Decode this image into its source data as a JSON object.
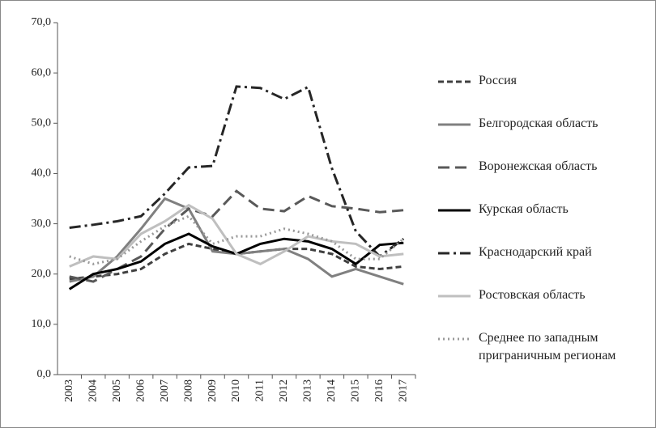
{
  "chart_data": {
    "type": "line",
    "categories": [
      "2003",
      "2004",
      "2005",
      "2006",
      "2007",
      "2008",
      "2009",
      "2010",
      "2011",
      "2012",
      "2013",
      "2014",
      "2015",
      "2016",
      "2017"
    ],
    "ylim": [
      0,
      70
    ],
    "yticks": [
      {
        "value": 0,
        "label": "0,0"
      },
      {
        "value": 10,
        "label": "10,0"
      },
      {
        "value": 20,
        "label": "20,0"
      },
      {
        "value": 30,
        "label": "30,0"
      },
      {
        "value": 40,
        "label": "40,0"
      },
      {
        "value": 50,
        "label": "50,0"
      },
      {
        "value": 60,
        "label": "60,0"
      },
      {
        "value": 70,
        "label": "70,0"
      }
    ],
    "grid": false,
    "legend": "right",
    "series": [
      {
        "name": "Россия",
        "color": "#404040",
        "dash": "7,4",
        "values": [
          19,
          19.5,
          20,
          21,
          24,
          26,
          25,
          24,
          24.5,
          25,
          25,
          24,
          21.5,
          21,
          21.5
        ]
      },
      {
        "name": "Белгородская  область",
        "color": "#808080",
        "dash": "none",
        "values": [
          18.5,
          19.5,
          23.5,
          29,
          35,
          33,
          24.5,
          24,
          24.5,
          25,
          23,
          19.5,
          21,
          19.5,
          18
        ]
      },
      {
        "name": "Воронежская область",
        "color": "#595959",
        "dash": "14,7",
        "values": [
          19.5,
          18.5,
          21,
          23.5,
          29,
          33,
          31.5,
          36.5,
          33,
          32.5,
          35.5,
          33.5,
          33,
          32.3,
          32.7
        ]
      },
      {
        "name": "Курская область",
        "color": "#000000",
        "dash": "none",
        "values": [
          17,
          20,
          21,
          22.5,
          26,
          28,
          25.5,
          24,
          26,
          27,
          26.5,
          25,
          22,
          25.8,
          26.2
        ]
      },
      {
        "name": "Краснодарский край",
        "color": "#262626",
        "dash": "14,5,3,5",
        "values": [
          29.2,
          29.8,
          30.5,
          31.5,
          36,
          41.2,
          41.5,
          57.3,
          57,
          54.8,
          57.2,
          41,
          28.5,
          23.5,
          27
        ]
      },
      {
        "name": "Ростовская область",
        "color": "#bfbfbf",
        "dash": "none",
        "values": [
          21.5,
          23.5,
          23,
          28,
          30.5,
          33.7,
          31,
          24,
          22,
          24.5,
          27.5,
          26.5,
          26,
          23.5,
          24
        ]
      },
      {
        "name": "Среднее по западным приграничным регионам",
        "color": "#999999",
        "dash": "2,4",
        "values": [
          23.5,
          22,
          23,
          26.5,
          29.5,
          31.5,
          26,
          27.5,
          27.5,
          29,
          28,
          26.5,
          23,
          23,
          27
        ]
      }
    ]
  }
}
